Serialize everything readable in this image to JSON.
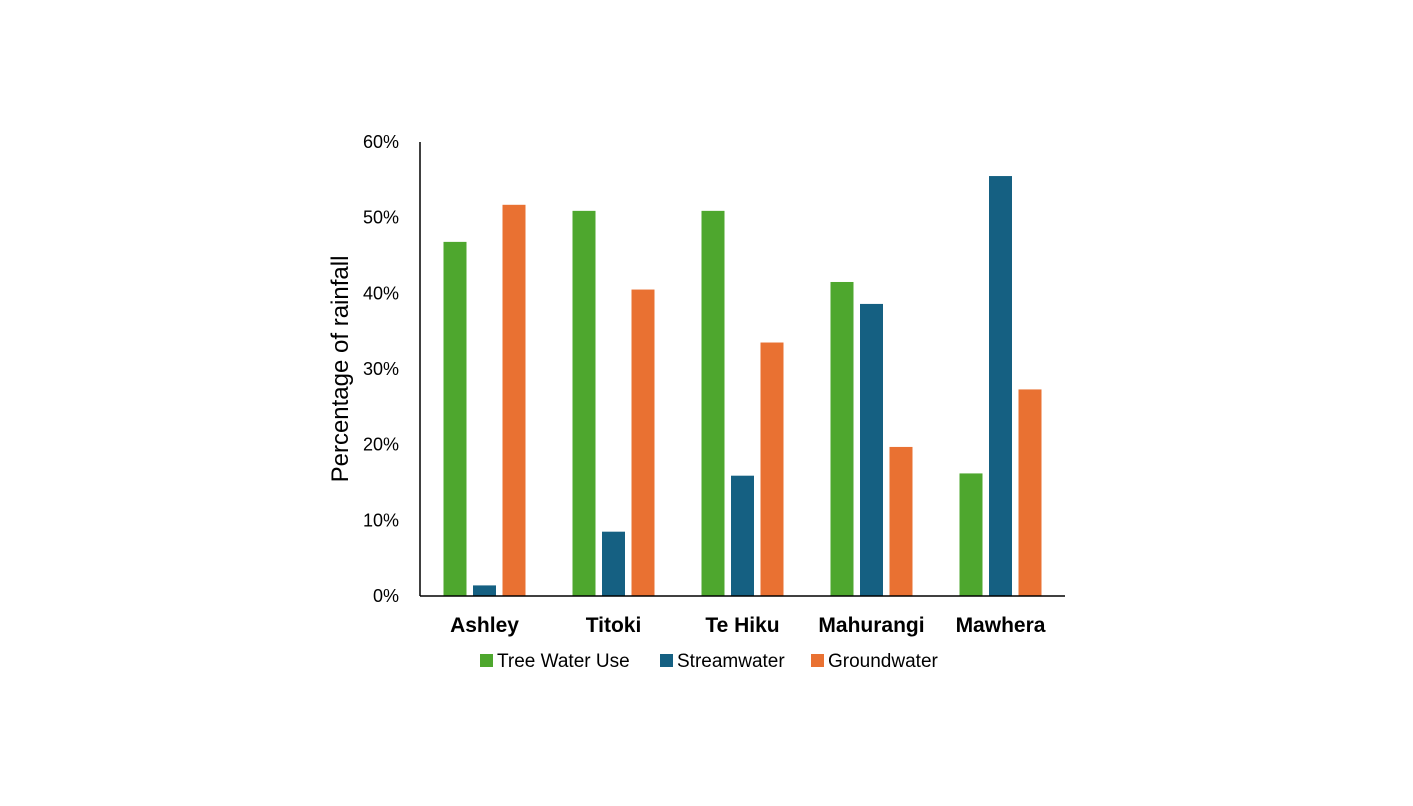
{
  "chart_data": {
    "type": "bar",
    "title": "",
    "xlabel": "",
    "ylabel": "Percentage of rainfall",
    "ylim": [
      0,
      60
    ],
    "yticks": [
      "0%",
      "10%",
      "20%",
      "30%",
      "40%",
      "50%",
      "60%"
    ],
    "categories": [
      "Ashley",
      "Titoki",
      "Te Hiku",
      "Mahurangi",
      "Mawhera"
    ],
    "series": [
      {
        "name": "Tree Water Use",
        "color": "#4ea72e",
        "values": [
          46.8,
          50.9,
          50.9,
          41.5,
          16.2
        ]
      },
      {
        "name": "Streamwater",
        "color": "#156082",
        "values": [
          1.4,
          8.5,
          15.9,
          38.6,
          55.5
        ]
      },
      {
        "name": "Groundwater",
        "color": "#e97132",
        "values": [
          51.7,
          40.5,
          33.5,
          19.7,
          27.3
        ]
      }
    ],
    "grid": false,
    "legend": "bottom"
  }
}
